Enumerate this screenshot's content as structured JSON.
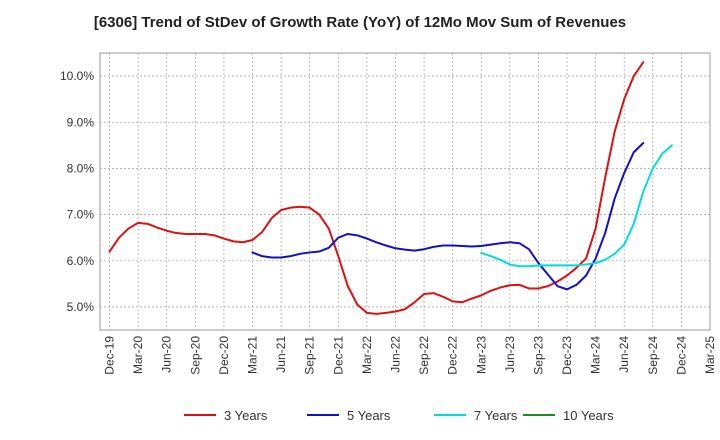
{
  "chart_data": {
    "type": "line",
    "title": "[6306]  Trend of StDev of Growth Rate (YoY) of 12Mo Mov Sum of Revenues",
    "xlabel": "",
    "ylabel": "",
    "ylim": [
      4.5,
      10.5
    ],
    "y_ticks": [
      5.0,
      6.0,
      7.0,
      8.0,
      9.0,
      10.0
    ],
    "y_tick_labels": [
      "5.0%",
      "6.0%",
      "7.0%",
      "8.0%",
      "9.0%",
      "10.0%"
    ],
    "grid": true,
    "legend_position": "bottom",
    "x_tick_labels": [
      "Dec-19",
      "Mar-20",
      "Jun-20",
      "Sep-20",
      "Dec-20",
      "Mar-21",
      "Jun-21",
      "Sep-21",
      "Dec-21",
      "Mar-22",
      "Jun-22",
      "Sep-22",
      "Dec-22",
      "Mar-23",
      "Jun-23",
      "Sep-23",
      "Dec-23",
      "Mar-24",
      "Jun-24",
      "Sep-24",
      "Dec-24",
      "Mar-25"
    ],
    "series": [
      {
        "name": "3 Years",
        "color": "#dd1111",
        "start_index": 0,
        "values": [
          6.2,
          6.5,
          6.7,
          6.82,
          6.8,
          6.72,
          6.65,
          6.6,
          6.58,
          6.58,
          6.58,
          6.55,
          6.48,
          6.42,
          6.4,
          6.45,
          6.62,
          6.92,
          7.1,
          7.15,
          7.17,
          7.15,
          7.0,
          6.7,
          6.1,
          5.45,
          5.05,
          4.87,
          4.85,
          4.87,
          4.9,
          4.95,
          5.1,
          5.28,
          5.3,
          5.22,
          5.12,
          5.1,
          5.18,
          5.25,
          5.35,
          5.42,
          5.47,
          5.48,
          5.4,
          5.4,
          5.45,
          5.55,
          5.68,
          5.85,
          6.05,
          6.7,
          7.8,
          8.8,
          9.5,
          10.0,
          10.3
        ]
      },
      {
        "name": "5 Years",
        "color": "#1111cc",
        "start_index": 15,
        "values": [
          6.18,
          6.1,
          6.07,
          6.07,
          6.1,
          6.15,
          6.18,
          6.2,
          6.28,
          6.5,
          6.58,
          6.55,
          6.48,
          6.4,
          6.33,
          6.27,
          6.24,
          6.22,
          6.25,
          6.3,
          6.33,
          6.33,
          6.32,
          6.31,
          6.32,
          6.35,
          6.38,
          6.4,
          6.38,
          6.25,
          5.95,
          5.7,
          5.45,
          5.38,
          5.48,
          5.68,
          6.05,
          6.6,
          7.35,
          7.9,
          8.35,
          8.55
        ]
      },
      {
        "name": "7 Years",
        "color": "#00dddd",
        "start_index": 39,
        "values": [
          6.17,
          6.1,
          6.02,
          5.92,
          5.88,
          5.88,
          5.9,
          5.9,
          5.9,
          5.9,
          5.9,
          5.92,
          5.95,
          6.02,
          6.15,
          6.35,
          6.8,
          7.5,
          8.0,
          8.32,
          8.5
        ]
      },
      {
        "name": "10 Years",
        "color": "#228822",
        "start_index": 0,
        "values": []
      }
    ]
  }
}
